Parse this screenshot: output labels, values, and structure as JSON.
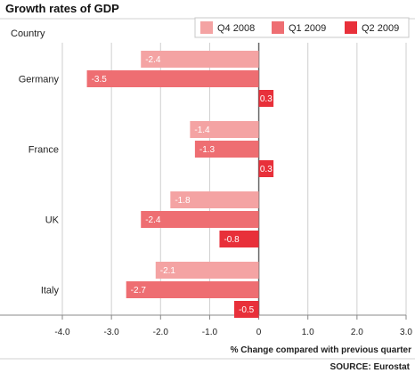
{
  "chart_data": {
    "type": "bar",
    "orientation": "horizontal",
    "title": "Growth rates of GDP",
    "category_label": "Country",
    "categories": [
      "Germany",
      "France",
      "UK",
      "Italy"
    ],
    "series": [
      {
        "name": "Q4 2008",
        "color": "#f4a3a3",
        "values": [
          -2.4,
          -1.4,
          -1.8,
          -2.1
        ]
      },
      {
        "name": "Q1 2009",
        "color": "#ee6e72",
        "values": [
          -3.5,
          -1.3,
          -2.4,
          -2.7
        ]
      },
      {
        "name": "Q2 2009",
        "color": "#e8303a",
        "values": [
          0.3,
          0.3,
          -0.8,
          -0.5
        ]
      }
    ],
    "x_ticks": [
      "-4.0",
      "-3.0",
      "-2.0",
      "-1.0",
      "0",
      "1.0",
      "2.0",
      "3.0"
    ],
    "xlim": [
      -4,
      3
    ],
    "xlabel": "% Change compared with previous quarter",
    "source": "SOURCE: Eurostat",
    "grid": true,
    "legend_position": "top-right"
  }
}
